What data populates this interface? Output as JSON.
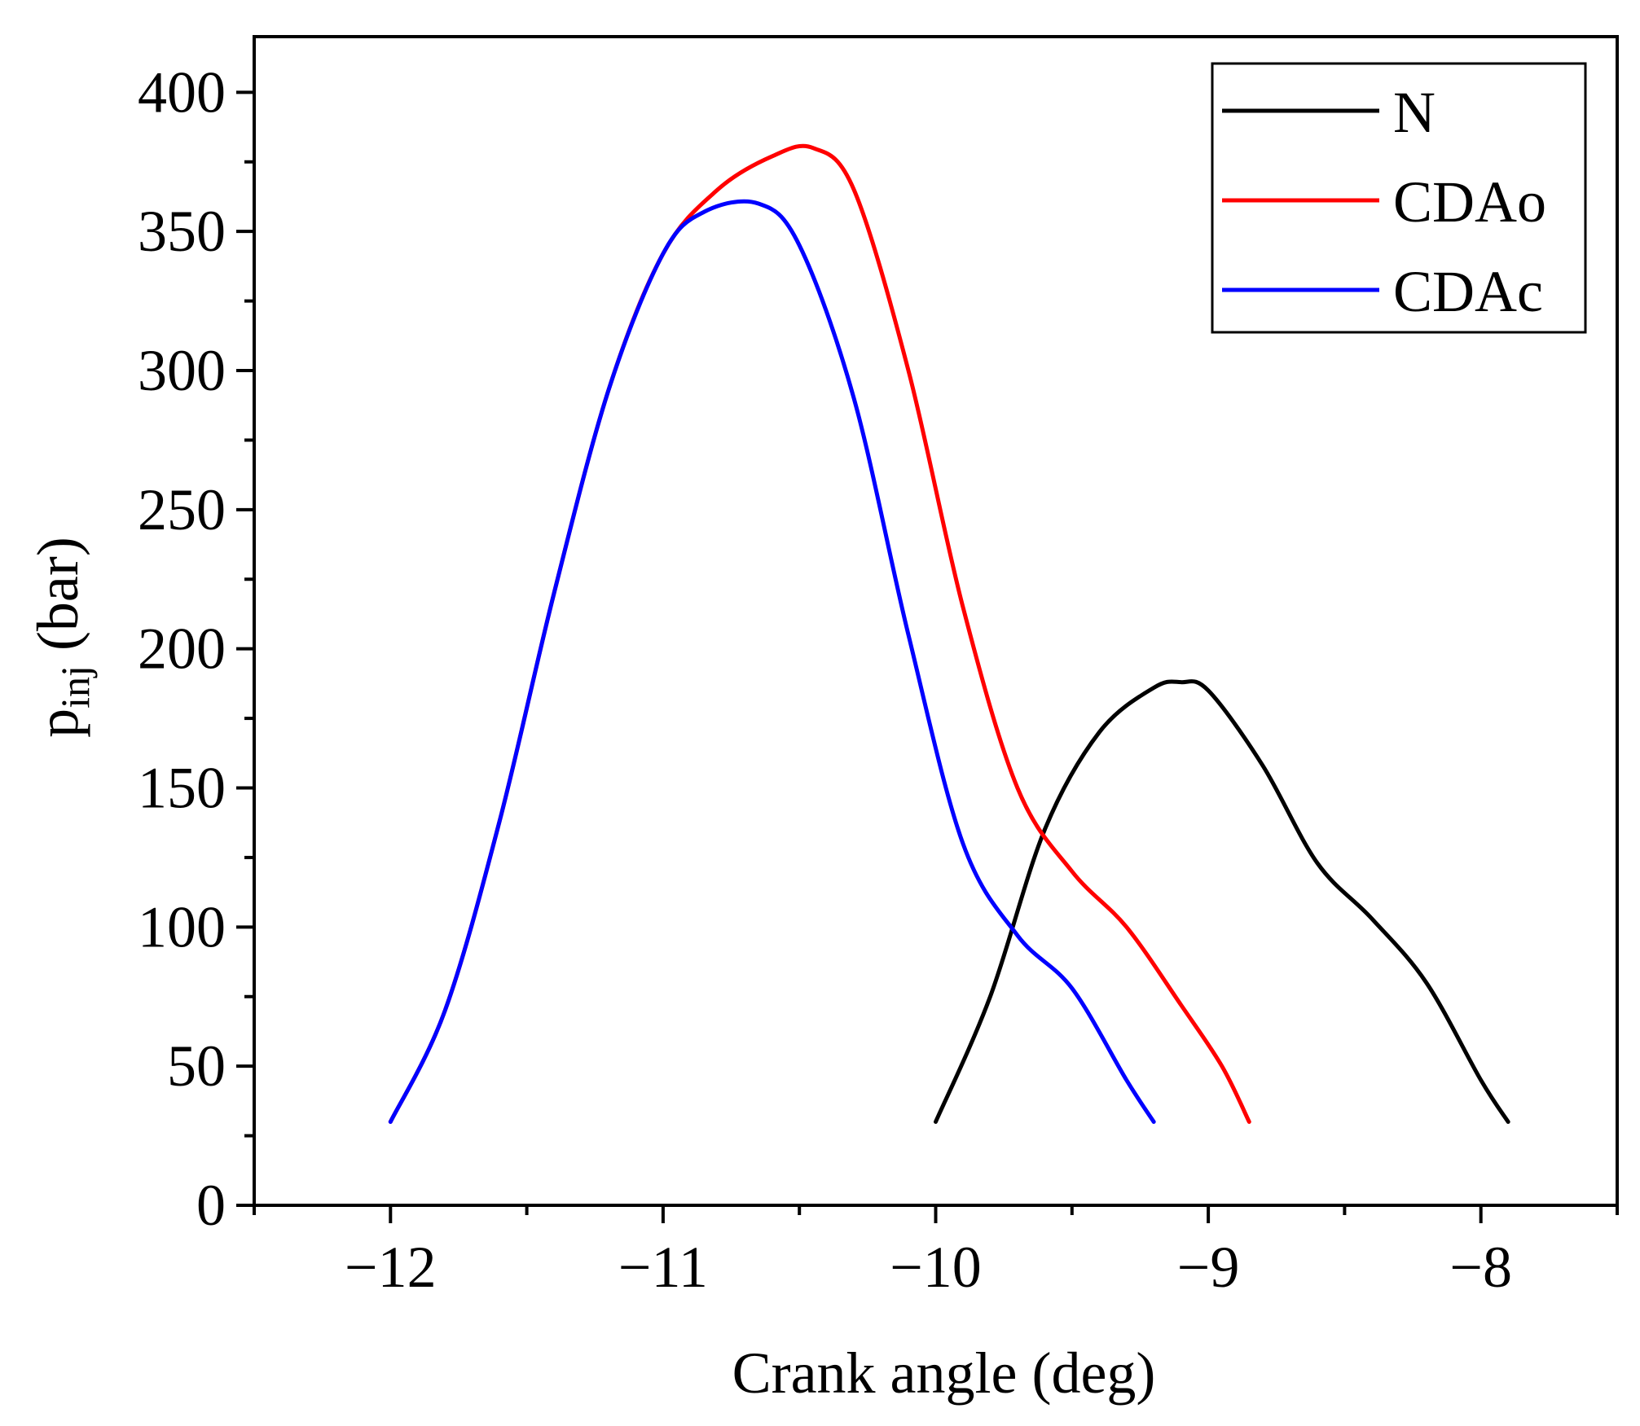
{
  "chart_data": {
    "type": "line",
    "title": "",
    "xlabel": "Crank angle (deg)",
    "ylabel": {
      "base": "p",
      "subscript": "inj",
      "unit": "(bar)"
    },
    "xlim": [
      -12.5,
      -7.5
    ],
    "ylim": [
      0,
      420
    ],
    "xticks": [
      -12,
      -11,
      -10,
      -9,
      -8
    ],
    "xtick_labels": [
      "−12",
      "−11",
      "−10",
      "−9",
      "−8"
    ],
    "yticks": [
      0,
      50,
      100,
      150,
      200,
      250,
      300,
      350,
      400
    ],
    "ytick_labels": [
      "0",
      "50",
      "100",
      "150",
      "200",
      "250",
      "300",
      "350",
      "400"
    ],
    "legend_position": "top-right",
    "series": [
      {
        "name": "N",
        "color": "#000000",
        "x": [
          -10.0,
          -9.8,
          -9.6,
          -9.4,
          -9.2,
          -9.1,
          -9.0,
          -8.8,
          -8.6,
          -8.4,
          -8.2,
          -8.0,
          -7.9
        ],
        "y": [
          30,
          75,
          135,
          170,
          186,
          188,
          185,
          158,
          123,
          103,
          80,
          45,
          30
        ]
      },
      {
        "name": "CDAo",
        "color": "#ff0000",
        "x": [
          -12.0,
          -11.8,
          -11.6,
          -11.4,
          -11.2,
          -11.0,
          -10.8,
          -10.6,
          -10.45,
          -10.3,
          -10.1,
          -9.9,
          -9.7,
          -9.5,
          -9.3,
          -9.1,
          -8.95,
          -8.85
        ],
        "y": [
          30,
          70,
          138,
          220,
          293,
          342,
          365,
          377,
          380,
          365,
          300,
          215,
          150,
          120,
          100,
          72,
          50,
          30
        ]
      },
      {
        "name": "CDAc",
        "color": "#0000ff",
        "x": [
          -12.0,
          -11.8,
          -11.6,
          -11.4,
          -11.2,
          -11.0,
          -10.85,
          -10.65,
          -10.5,
          -10.3,
          -10.1,
          -9.9,
          -9.7,
          -9.5,
          -9.3,
          -9.2
        ],
        "y": [
          30,
          70,
          138,
          220,
          293,
          342,
          357,
          360,
          345,
          290,
          205,
          130,
          97,
          78,
          45,
          30
        ]
      }
    ]
  }
}
